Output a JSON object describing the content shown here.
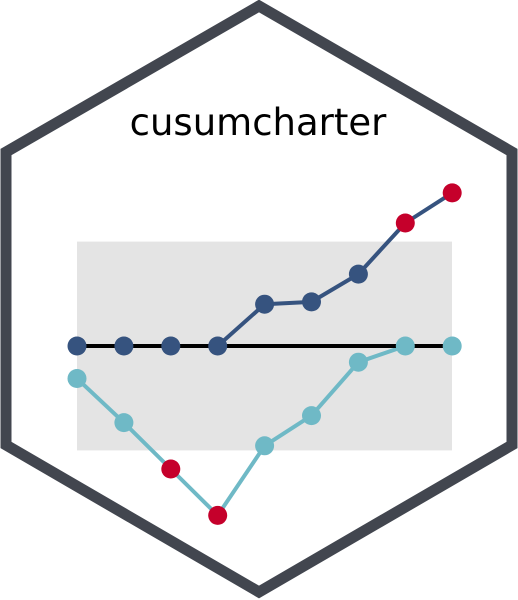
{
  "title": "cusumcharter",
  "colors": {
    "hex_border": "#42464f",
    "band": "#e4e4e4",
    "target_line": "#000000",
    "upper_series": "#36537f",
    "lower_series": "#6fb9c6",
    "out_of_control": "#c5002b"
  },
  "chart_data": {
    "type": "line",
    "x": [
      1,
      2,
      3,
      4,
      5,
      6,
      7,
      8,
      9
    ],
    "band": [
      -4.5,
      4.5
    ],
    "target": 0,
    "series": [
      {
        "key": "upper",
        "values": [
          0,
          0,
          0,
          0,
          1.8,
          1.9,
          3.1,
          5.3,
          6.6
        ],
        "out_of_control": [
          false,
          false,
          false,
          false,
          false,
          false,
          false,
          true,
          true
        ]
      },
      {
        "key": "lower",
        "values": [
          -1.4,
          -3.3,
          -5.3,
          -7.3,
          -4.3,
          -3.0,
          -0.7,
          0,
          0
        ],
        "out_of_control": [
          false,
          false,
          true,
          true,
          false,
          false,
          false,
          false,
          false
        ]
      }
    ]
  }
}
